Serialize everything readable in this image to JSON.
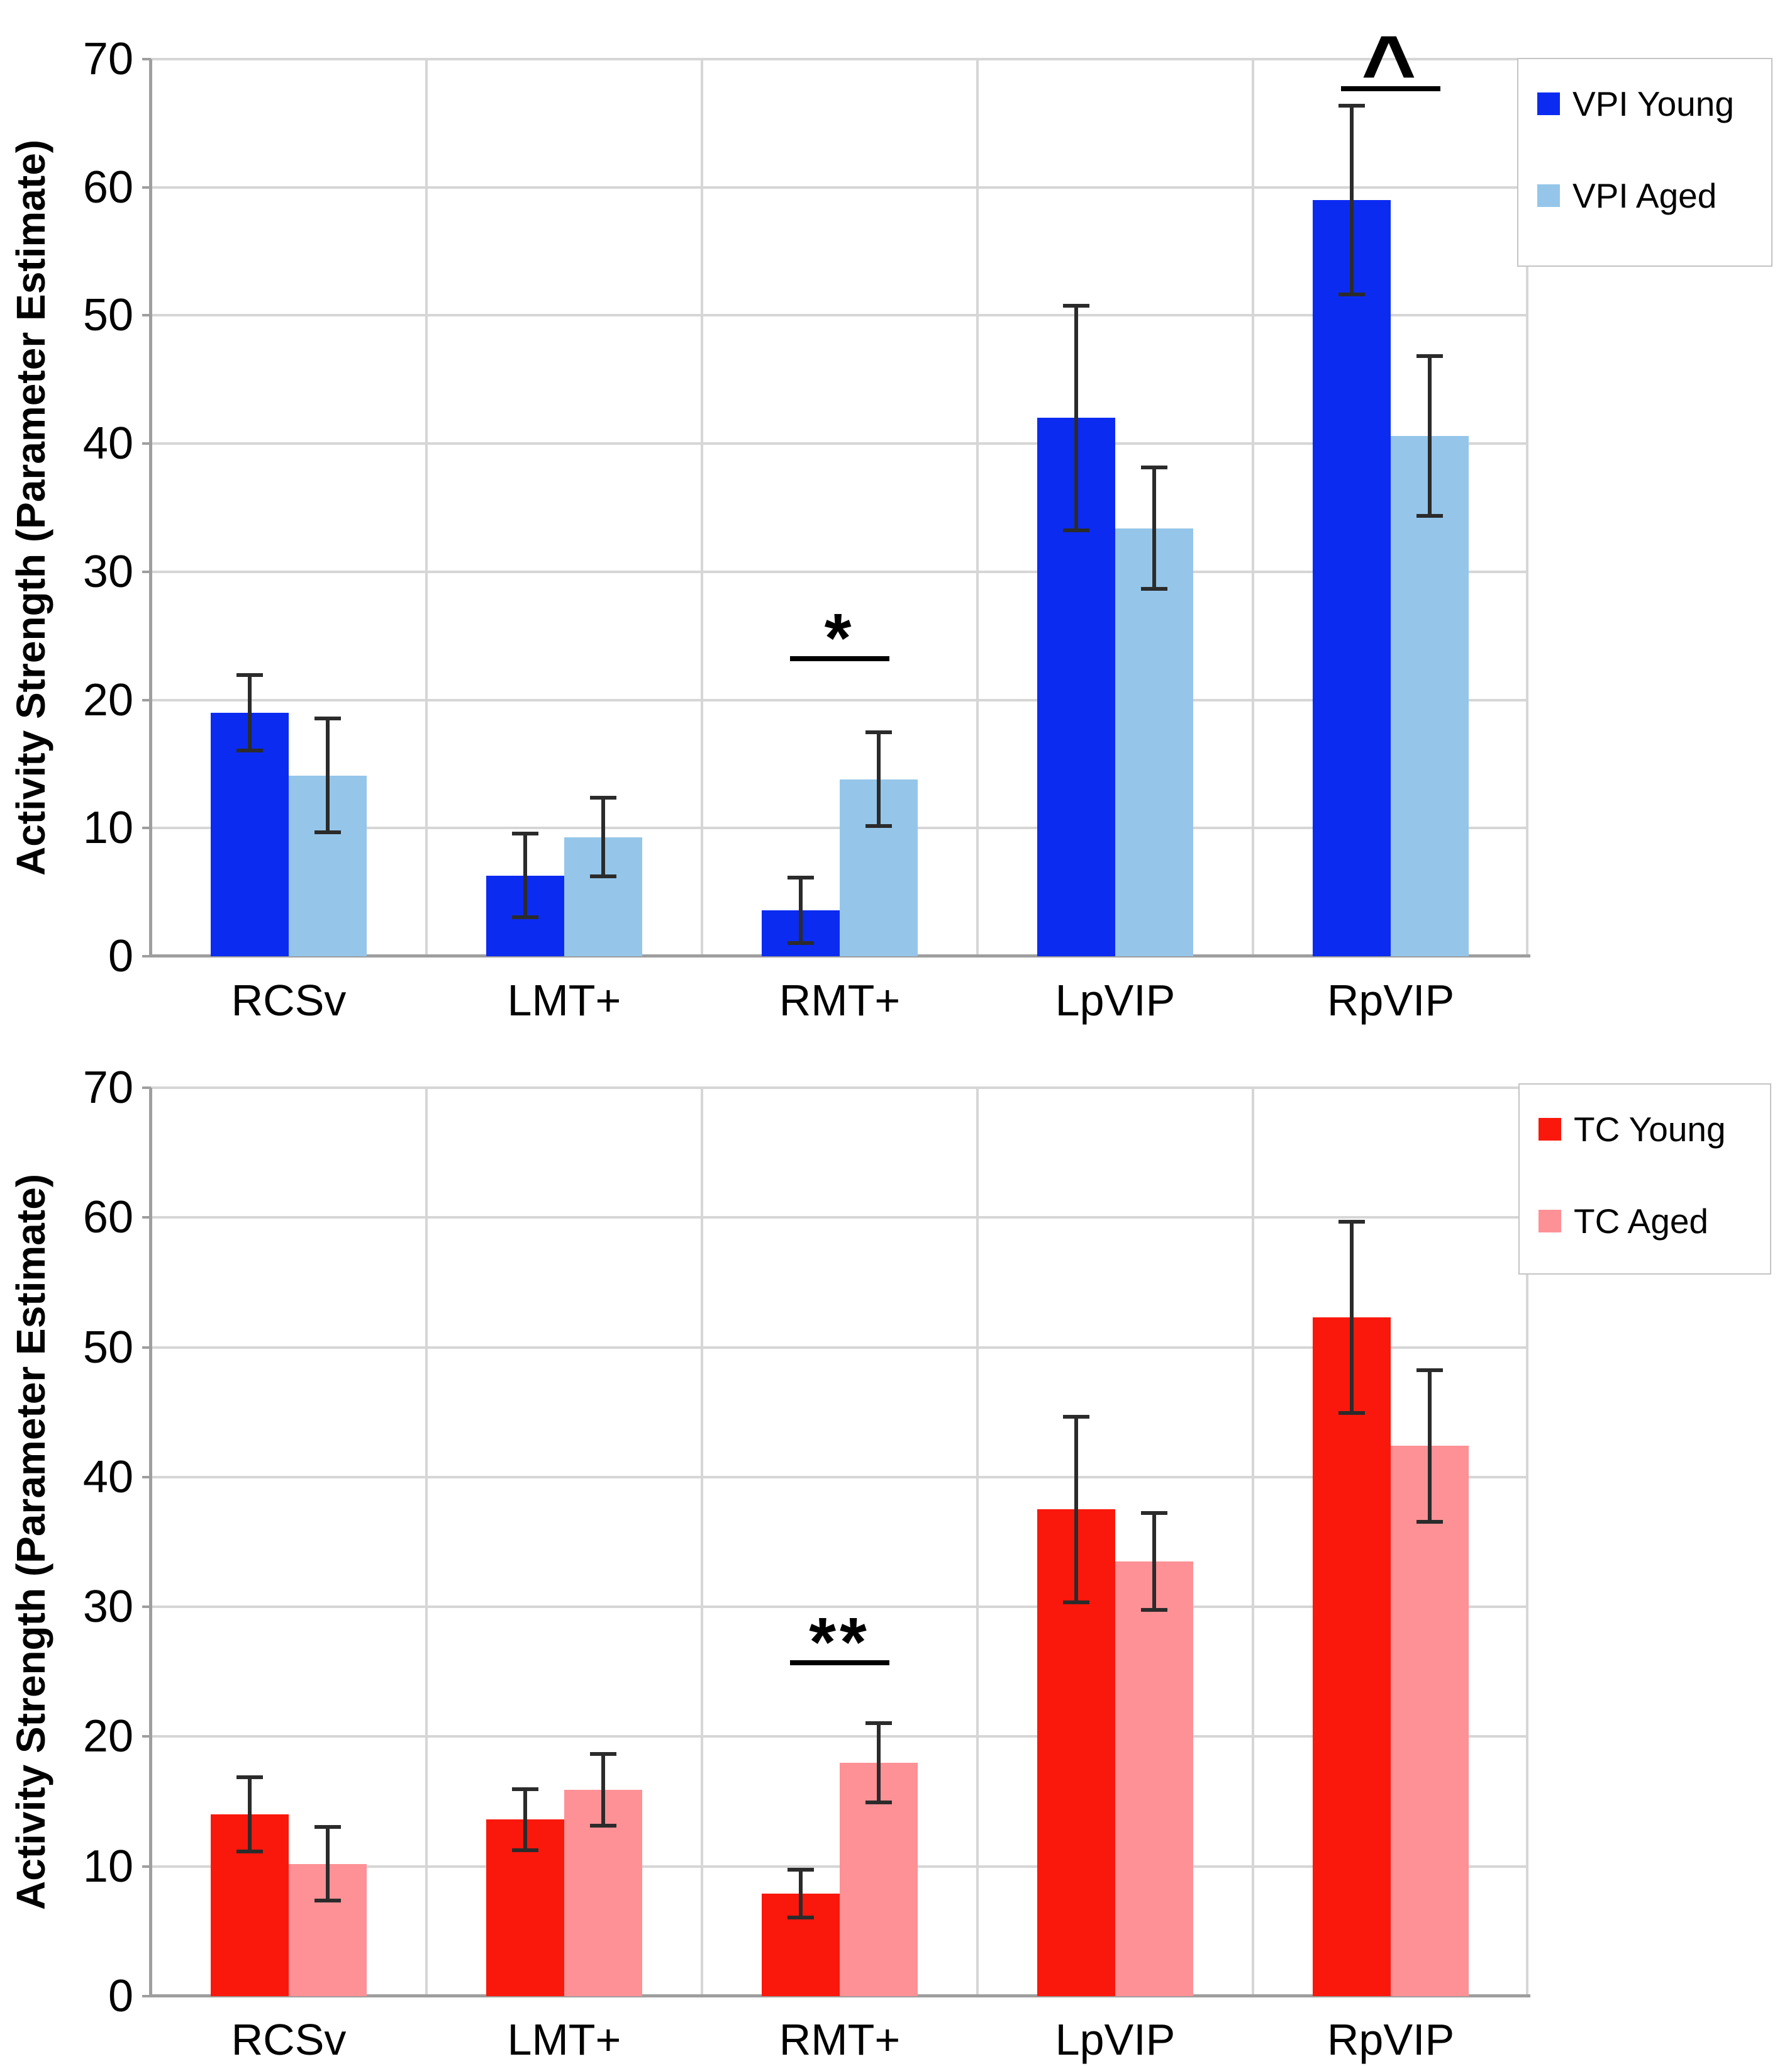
{
  "styles": {
    "background": "#ffffff",
    "grid_color": "#d6d6d6",
    "axis_color": "#9e9e9e",
    "error_bar_color": "#2b2b2b",
    "text_color": "#000000",
    "legend_border_color": "#c4c4c4",
    "annotation_color": "#000000"
  },
  "chart_data": [
    {
      "type": "bar",
      "title": "",
      "xlabel": "",
      "ylabel": "Activity Strength (Parameter Estimate)",
      "ylim": [
        0,
        70
      ],
      "yticks": [
        0,
        10,
        20,
        30,
        40,
        50,
        60,
        70
      ],
      "grid": true,
      "legend_position": "top-right",
      "categories": [
        "RCSv",
        "LMT+",
        "RMT+",
        "LpVIP",
        "RpVIP"
      ],
      "series": [
        {
          "name": "VPI Young",
          "color": "#0b2bf1",
          "values": [
            19.0,
            6.3,
            3.6,
            42.0,
            59.0
          ],
          "errors": [
            3.1,
            3.4,
            2.7,
            8.9,
            7.5
          ]
        },
        {
          "name": "VPI Aged",
          "color": "#95c6ea",
          "values": [
            14.1,
            9.3,
            13.8,
            33.4,
            40.6
          ],
          "errors": [
            4.6,
            3.2,
            3.8,
            4.9,
            6.4
          ]
        }
      ],
      "annotations": [
        {
          "category": "RMT+",
          "symbol": "*",
          "line_value": 23
        },
        {
          "category": "RpVIP",
          "symbol": "^",
          "line_value": 67.5
        }
      ]
    },
    {
      "type": "bar",
      "title": "",
      "xlabel": "",
      "ylabel": "Activity Strength (Parameter Estimate)",
      "ylim": [
        0,
        70
      ],
      "yticks": [
        0,
        10,
        20,
        30,
        40,
        50,
        60,
        70
      ],
      "grid": true,
      "legend_position": "top-right",
      "categories": [
        "RCSv",
        "LMT+",
        "RMT+",
        "LpVIP",
        "RpVIP"
      ],
      "series": [
        {
          "name": "TC Young",
          "color": "#fa180c",
          "values": [
            14.0,
            13.6,
            7.9,
            37.5,
            52.3
          ],
          "errors": [
            3.0,
            2.5,
            2.0,
            7.3,
            7.5
          ]
        },
        {
          "name": "TC Aged",
          "color": "#fd9196",
          "values": [
            10.2,
            15.9,
            18.0,
            33.5,
            42.4
          ],
          "errors": [
            3.0,
            2.9,
            3.2,
            3.9,
            6.0
          ]
        }
      ],
      "annotations": [
        {
          "category": "RMT+",
          "symbol": "**",
          "line_value": 25.5
        }
      ]
    }
  ]
}
